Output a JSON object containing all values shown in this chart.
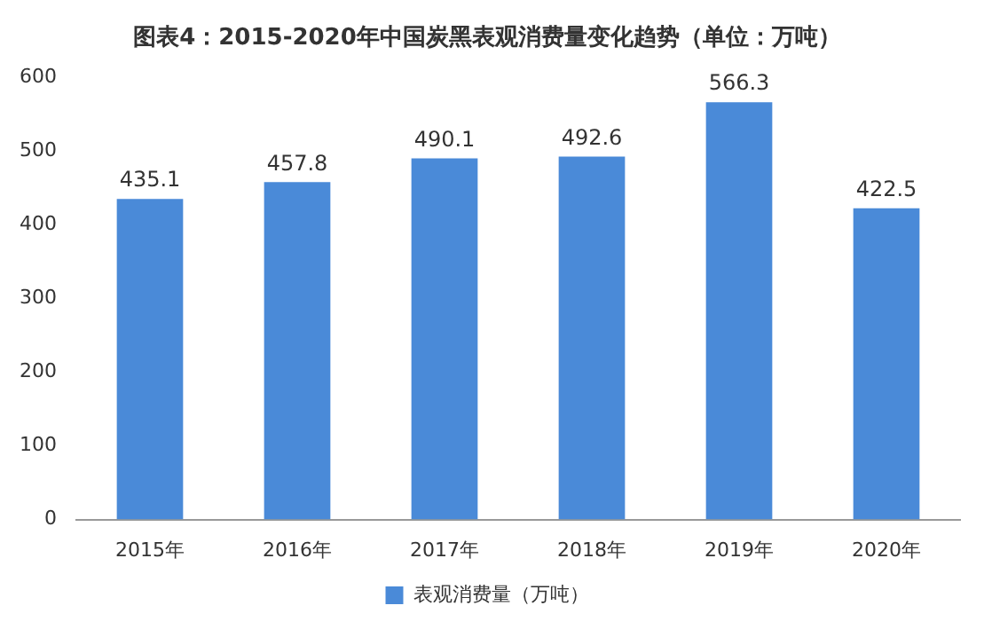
{
  "chart_data": {
    "type": "bar",
    "title": "图表4：2015-2020年中国炭黑表观消费量变化趋势（单位：万吨）",
    "categories": [
      "2015年",
      "2016年",
      "2017年",
      "2018年",
      "2019年",
      "2020年"
    ],
    "series": [
      {
        "name": "表观消费量（万吨）",
        "color": "#4a8ad8",
        "values": [
          435.1,
          457.8,
          490.1,
          492.6,
          566.3,
          422.5
        ]
      }
    ],
    "ylim": [
      0,
      600
    ],
    "yticks": [
      0,
      100,
      200,
      300,
      400,
      500,
      600
    ],
    "grid": false,
    "legend": "bottom",
    "data_labels": true
  }
}
